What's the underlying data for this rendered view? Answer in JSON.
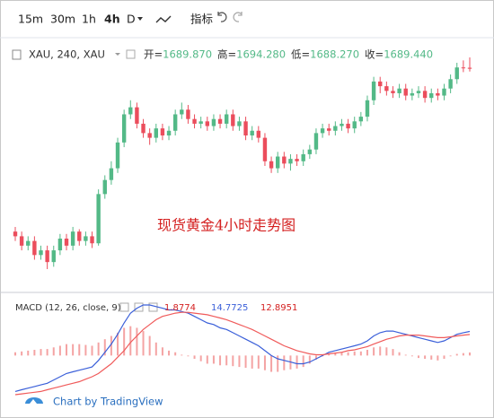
{
  "toolbar": {
    "intervals": [
      "15m",
      "30m",
      "1h",
      "4h",
      "D"
    ],
    "indicators": "指标"
  },
  "chart_data": {
    "type": "candlestick",
    "symbol": "XAU, 240, XAU",
    "ohlc_labels": [
      "开=",
      "高=",
      "低=",
      "收="
    ],
    "ohlc_texts": [
      "1689.870",
      "1694.280",
      "1688.270",
      "1689.440"
    ],
    "annotation": "现货黄金4小时走势图",
    "up_color": "#53b987",
    "down_color": "#eb4d5c",
    "open": [
      1620,
      1618,
      1614,
      1616,
      1610,
      1612,
      1607,
      1612,
      1617,
      1614,
      1620,
      1616,
      1618,
      1615,
      1636,
      1642,
      1647,
      1658,
      1670,
      1673,
      1666,
      1662,
      1660,
      1664,
      1661,
      1663,
      1670,
      1672,
      1668,
      1666,
      1667,
      1665,
      1668,
      1666,
      1670,
      1665,
      1667,
      1661,
      1663,
      1660,
      1650,
      1647,
      1652,
      1649,
      1651,
      1650,
      1653,
      1655,
      1662,
      1664,
      1663,
      1665,
      1666,
      1664,
      1667,
      1669,
      1676,
      1684,
      1682,
      1680,
      1679,
      1681,
      1678,
      1679,
      1680,
      1677,
      1679,
      1678,
      1681,
      1685,
      1690,
      1689.87
    ],
    "high": [
      1622,
      1620,
      1618,
      1618,
      1614,
      1614,
      1614,
      1619,
      1619,
      1622,
      1621,
      1620,
      1620,
      1638,
      1644,
      1650,
      1660,
      1672,
      1676,
      1675,
      1668,
      1664,
      1666,
      1666,
      1665,
      1672,
      1675,
      1674,
      1670,
      1669,
      1669,
      1670,
      1670,
      1672,
      1672,
      1669,
      1669,
      1665,
      1665,
      1662,
      1652,
      1654,
      1654,
      1653,
      1653,
      1655,
      1657,
      1664,
      1666,
      1666,
      1667,
      1668,
      1668,
      1669,
      1671,
      1678,
      1686,
      1686,
      1684,
      1682,
      1683,
      1683,
      1681,
      1682,
      1682,
      1681,
      1681,
      1683,
      1687,
      1692,
      1693,
      1694.28
    ],
    "low": [
      1616,
      1612,
      1612,
      1608,
      1608,
      1604,
      1605,
      1610,
      1612,
      1612,
      1614,
      1614,
      1613,
      1614,
      1634,
      1640,
      1645,
      1656,
      1668,
      1664,
      1660,
      1657,
      1658,
      1659,
      1659,
      1661,
      1668,
      1666,
      1664,
      1664,
      1663,
      1663,
      1664,
      1664,
      1663,
      1663,
      1659,
      1659,
      1658,
      1648,
      1645,
      1645,
      1647,
      1646,
      1648,
      1648,
      1651,
      1653,
      1660,
      1661,
      1661,
      1663,
      1662,
      1662,
      1665,
      1667,
      1674,
      1679,
      1678,
      1677,
      1677,
      1676,
      1676,
      1677,
      1675,
      1675,
      1676,
      1676,
      1679,
      1683,
      1688,
      1688.27
    ],
    "close": [
      1618,
      1614,
      1616,
      1610,
      1612,
      1607,
      1612,
      1617,
      1614,
      1620,
      1616,
      1618,
      1615,
      1636,
      1642,
      1647,
      1658,
      1670,
      1673,
      1666,
      1662,
      1660,
      1664,
      1661,
      1663,
      1670,
      1672,
      1668,
      1666,
      1667,
      1665,
      1668,
      1666,
      1670,
      1665,
      1667,
      1661,
      1663,
      1660,
      1650,
      1647,
      1652,
      1649,
      1651,
      1650,
      1653,
      1655,
      1662,
      1664,
      1663,
      1665,
      1666,
      1664,
      1667,
      1669,
      1676,
      1684,
      1682,
      1680,
      1679,
      1681,
      1678,
      1679,
      1680,
      1677,
      1679,
      1678,
      1681,
      1685,
      1690,
      1689.87,
      1689.44
    ],
    "macd": {
      "title": "MACD (12, 26, close, 9)",
      "histogram": {
        "color": "#f4a3a3",
        "values": [
          2,
          2.5,
          3,
          3.5,
          4,
          4,
          5,
          6,
          7,
          7,
          7,
          6.5,
          6,
          8,
          10,
          12,
          14,
          17,
          18,
          17,
          15,
          12,
          8,
          5,
          3,
          2,
          0.5,
          -0.5,
          -2,
          -3.5,
          -5,
          -5,
          -6,
          -6,
          -6.5,
          -7,
          -7.5,
          -8,
          -8,
          -9,
          -10,
          -10,
          -9,
          -8.5,
          -8,
          -7,
          -5,
          -2.5,
          -0.5,
          1,
          1.5,
          2,
          2,
          2.5,
          2.5,
          3.5,
          5,
          5.5,
          5,
          4,
          2,
          0.5,
          -0.5,
          -1.5,
          -2,
          -2.5,
          -3,
          -2,
          -0.5,
          1,
          1.5,
          1.8774
        ]
      },
      "line": {
        "color": "#3a5fd9",
        "values": [
          -22,
          -21,
          -20,
          -19,
          -18,
          -17,
          -15,
          -13,
          -11,
          -10,
          -9,
          -8,
          -7,
          -3,
          2,
          7,
          13,
          20,
          26,
          29,
          31,
          31,
          30,
          29,
          28,
          28,
          27,
          26,
          24,
          22,
          20,
          19,
          17,
          16,
          14,
          12,
          10,
          8,
          6,
          3,
          0,
          -2,
          -3,
          -4,
          -5,
          -5,
          -4,
          -2,
          0,
          2,
          3,
          4,
          5,
          6,
          7,
          9,
          12,
          14,
          15,
          15,
          14,
          13,
          12,
          11,
          10,
          9,
          8,
          9,
          11,
          13,
          14,
          14.7725
        ]
      },
      "signal": {
        "color": "#f05a5a",
        "values": [
          -24,
          -23.5,
          -23,
          -22.5,
          -22,
          -21,
          -20,
          -19,
          -18,
          -17,
          -16,
          -14.5,
          -13,
          -11,
          -8,
          -5,
          -1,
          3,
          8,
          12,
          16,
          19,
          22,
          24,
          25,
          26,
          26.5,
          26.5,
          26,
          25.5,
          25,
          24,
          23,
          22,
          20.5,
          19,
          17.5,
          16,
          14,
          12,
          10,
          8,
          6,
          4.5,
          3,
          2,
          1,
          0.5,
          0.5,
          1,
          1.5,
          2,
          3,
          3.5,
          4.5,
          5.5,
          7,
          8.5,
          10,
          11,
          12,
          12.5,
          12.5,
          12.5,
          12,
          11.5,
          11,
          11,
          11.5,
          12,
          12.5,
          12.8951
        ]
      }
    }
  },
  "watermark": "Chart by TradingView"
}
